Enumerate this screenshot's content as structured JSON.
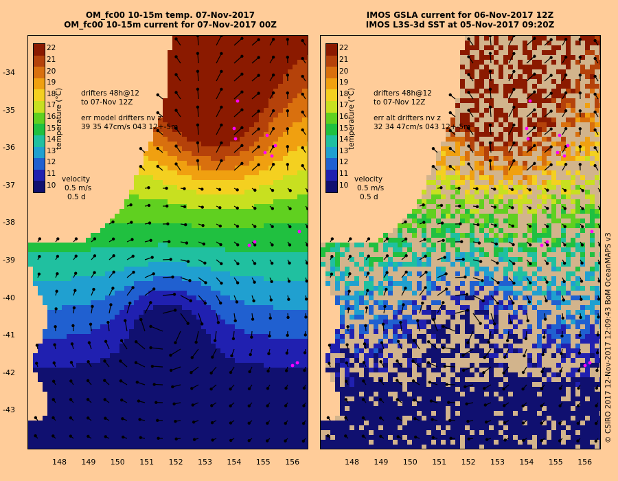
{
  "left_panel": {
    "title_line1": "OM_fc00 10-15m temp. 07-Nov-2017",
    "title_line2": "OM_fc00 10-15m current for 07-Nov-2017 00Z",
    "drifters_line1": "drifters 48h@12",
    "drifters_line2": "to 07-Nov 12Z",
    "err_line1": "err model drifters nv z",
    "err_line2": "39 35 47cm/s 043 12+-5m",
    "velocity_label": "velocity",
    "velocity_scale": "0.5 m/s",
    "velocity_time": "0.5 d"
  },
  "right_panel": {
    "title_line1": "IMOS GSLA current for 06-Nov-2017 12Z",
    "title_line2": "IMOS L3S-3d SST at 05-Nov-2017 09:20Z",
    "drifters_line1": "drifters 48h@12",
    "drifters_line2": "to 07-Nov 12Z",
    "err_line1": "err alt drifters nv z",
    "err_line2": "32 34 47cm/s 043 12+-5m",
    "velocity_label": "velocity",
    "velocity_scale": "0.5 m/s",
    "velocity_time": "0.5 d"
  },
  "colorbar": {
    "label": "temperature (°C)",
    "ticks": [
      "22",
      "21",
      "20",
      "19",
      "18",
      "17",
      "16",
      "15",
      "14",
      "13",
      "12",
      "11",
      "10"
    ],
    "colors": [
      "#8b1a00",
      "#b5420a",
      "#d9700e",
      "#f0a010",
      "#f4d020",
      "#c8e020",
      "#60d020",
      "#20c040",
      "#20c0a0",
      "#20a0d0",
      "#2060d0",
      "#2020b0",
      "#101070"
    ]
  },
  "axes": {
    "lat_ticks": [
      "-34",
      "-35",
      "-36",
      "-37",
      "-38",
      "-39",
      "-40",
      "-41",
      "-42",
      "-43"
    ],
    "lon_ticks": [
      "148",
      "149",
      "150",
      "151",
      "152",
      "153",
      "154",
      "155",
      "156"
    ]
  },
  "credit": "© CSIRO 2017  12-Nov-2017 12:09:43 BoM OceanMAPS v3",
  "colors": {
    "land": "#ffcc99",
    "drifter": "#ff00ff",
    "missing": "#d2b48c"
  }
}
